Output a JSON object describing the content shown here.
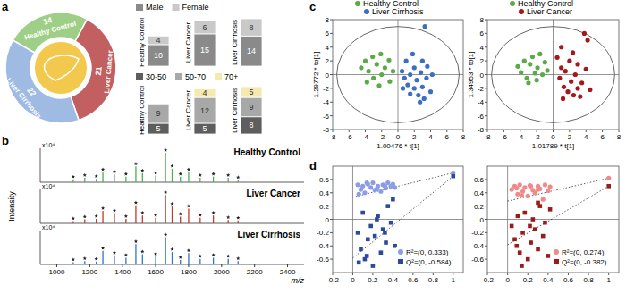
{
  "chart_data": [
    {
      "type": "pie",
      "title": "a",
      "categories": [
        "Healthy Control",
        "Liver Cancer",
        "Liver Cirrhosis"
      ],
      "values": [
        14,
        21,
        22
      ],
      "colors": [
        "#9fcf86",
        "#c25f60",
        "#9fbbe3"
      ],
      "data_labels": true
    },
    {
      "type": "bar",
      "stacked": true,
      "data_labels": true,
      "tick_labels": "x",
      "legend": "top",
      "categories": [
        "Healthy Control",
        "Liver Cancer",
        "Liver Cirrhosis"
      ],
      "ylim": [
        0,
        22
      ],
      "series": [
        {
          "name": "Male",
          "color": "#8a8a8a",
          "values": [
            10,
            15,
            14
          ]
        },
        {
          "name": "Female",
          "color": "#c9c9c9",
          "values": [
            4,
            6,
            8
          ]
        }
      ]
    },
    {
      "type": "bar",
      "stacked": true,
      "data_labels": true,
      "tick_labels": "x",
      "legend": "top",
      "categories": [
        "Healthy Control",
        "Liver Cancer",
        "Liver Cirrhosis"
      ],
      "ylim": [
        0,
        22
      ],
      "series": [
        {
          "name": "30-50",
          "color": "#5e5e5e",
          "values": [
            5,
            5,
            8
          ]
        },
        {
          "name": "50-70",
          "color": "#a8a8a8",
          "values": [
            9,
            12,
            9
          ]
        },
        {
          "name": "70+",
          "color": "#f5e9b0",
          "values": [
            null,
            4,
            5
          ]
        }
      ]
    },
    {
      "type": "stem",
      "title": "b",
      "x_label": "m/z",
      "y_label": "Intensity",
      "annotation": "x10⁴",
      "marker": "star",
      "tick_labels": "x",
      "xlim": [
        900,
        2500
      ],
      "xticks": [
        1000,
        1200,
        1400,
        1600,
        1800,
        2000,
        2200,
        2400
      ],
      "ylim": [
        0,
        3
      ],
      "x": [
        1100,
        1170,
        1240,
        1280,
        1350,
        1420,
        1480,
        1520,
        1600,
        1660,
        1700,
        1750,
        1800,
        1870,
        1950,
        2040,
        2100
      ],
      "series": [
        {
          "name": "Healthy Control",
          "color": "#4caf50",
          "values": [
            0.25,
            0.4,
            0.3,
            0.9,
            0.7,
            0.5,
            1.4,
            0.8,
            0.6,
            2.6,
            1.2,
            0.5,
            0.9,
            0.4,
            0.5,
            0.4,
            0.2
          ]
        },
        {
          "name": "Liver Cancer",
          "color": "#c0392b",
          "values": [
            0.2,
            0.35,
            0.4,
            1.1,
            0.9,
            0.4,
            1.6,
            0.7,
            0.5,
            2.5,
            1.5,
            0.6,
            1.3,
            0.5,
            0.7,
            0.3,
            0.25
          ]
        },
        {
          "name": "Liver Cirrhosis",
          "color": "#2e75c9",
          "values": [
            0.2,
            0.3,
            0.25,
            1.2,
            0.8,
            0.6,
            1.8,
            0.9,
            0.7,
            2.4,
            1.1,
            0.4,
            1.0,
            0.5,
            0.6,
            0.5,
            0.3
          ]
        }
      ]
    },
    {
      "type": "scatter",
      "title": "c",
      "x_label": "1.00476 * t[1]",
      "y_label": "1.29772 * to[1]",
      "legend": "top",
      "xlim": [
        -8,
        8
      ],
      "ylim": [
        -8,
        8
      ],
      "xticks": [
        -8,
        -6,
        -4,
        -2,
        0,
        2,
        4,
        6,
        8
      ],
      "yticks": [
        -8,
        -6,
        -4,
        -2,
        0,
        2,
        4,
        6,
        8
      ],
      "ellipse": {
        "rx": 7.5,
        "ry": 7
      },
      "series": [
        {
          "name": "Healthy Control",
          "color": "#5aaa46",
          "marker": "circle",
          "x": [
            -4.5,
            -4,
            -3.6,
            -3.1,
            -3,
            -2.6,
            -2.1,
            -2,
            -1.6,
            -1.1,
            -1,
            -0.6,
            -3.8,
            -2.3
          ],
          "values": [
            1,
            2,
            0.5,
            2.6,
            -0.5,
            1.5,
            3,
            0,
            1,
            2.1,
            -1,
            0.5,
            -1.1,
            -1.6
          ]
        },
        {
          "name": "Liver Cirrhosis",
          "color": "#3a6fc4",
          "marker": "circle",
          "x": [
            0.5,
            0.8,
            1,
            1.2,
            1.5,
            1.8,
            2,
            2,
            2.3,
            2.5,
            2.8,
            3,
            3,
            3.2,
            3.5,
            3.6,
            4,
            1.5,
            0.6,
            2.7,
            3.3,
            4.2
          ],
          "values": [
            0.5,
            -0.5,
            2,
            -1.5,
            0,
            3,
            -2,
            1,
            -0.8,
            -3,
            0.3,
            -1.8,
            2,
            -3.5,
            -0.5,
            1.2,
            -2.5,
            -2.8,
            -2,
            -4,
            7,
            0
          ]
        }
      ]
    },
    {
      "type": "scatter",
      "x_label": "1.01789 * t[1]",
      "y_label": "1.34953 * to[1]",
      "legend": "top",
      "xlim": [
        -8,
        8
      ],
      "ylim": [
        -8,
        8
      ],
      "xticks": [
        -8,
        -6,
        -4,
        -2,
        0,
        2,
        4,
        6,
        8
      ],
      "yticks": [
        -8,
        -6,
        -4,
        -2,
        0,
        2,
        4,
        6,
        8
      ],
      "ellipse": {
        "rx": 7.5,
        "ry": 7
      },
      "series": [
        {
          "name": "Healthy Control",
          "color": "#5aaa46",
          "marker": "circle",
          "x": [
            -4.3,
            -3.9,
            -3.5,
            -3.2,
            -2.8,
            -2.5,
            -2.2,
            -1.9,
            -1.6,
            -1.3,
            -1,
            -0.7,
            -3,
            -2
          ],
          "values": [
            1.2,
            0.3,
            2,
            -0.5,
            1.5,
            2.6,
            0.2,
            1,
            3,
            0,
            1.8,
            0.6,
            -1.2,
            -0.8
          ]
        },
        {
          "name": "Liver Cancer",
          "color": "#a5171c",
          "marker": "circle",
          "x": [
            0.5,
            0.8,
            1,
            1,
            1.3,
            1.5,
            1.8,
            2,
            2.2,
            2.5,
            2.7,
            3,
            3,
            3.3,
            3.5,
            3.8,
            4,
            4.2,
            4.5,
            1.2,
            2.4
          ],
          "values": [
            2.5,
            -0.5,
            4,
            1,
            -1.8,
            0.5,
            -2.5,
            2,
            -1,
            -3,
            0,
            -2,
            1.5,
            -3.2,
            -1.2,
            6,
            0.8,
            5,
            -2.2,
            -3.5,
            3.2
          ]
        }
      ]
    },
    {
      "type": "scatter",
      "title": "d",
      "legend": "bottom right",
      "xlim": [
        -0.2,
        1.1
      ],
      "ylim": [
        -0.8,
        0.8
      ],
      "xticks": [
        -0.2,
        0,
        0.2,
        0.4,
        0.6,
        0.8,
        1
      ],
      "yticks": [
        -0.6,
        -0.4,
        -0.2,
        0,
        0.2,
        0.4,
        0.6
      ],
      "series": [
        {
          "name": "R²=(0, 0.333)",
          "color": "#8c9de6",
          "marker": "circle",
          "line_style": "dotted",
          "intercept": 0.333,
          "x": [
            0.05,
            0.08,
            0.1,
            0.12,
            0.15,
            0.18,
            0.2,
            0.22,
            0.25,
            0.28,
            0.3,
            0.33,
            0.35,
            0.38,
            0.4,
            0.42,
            0.06,
            0.14,
            0.24,
            0.32,
            1
          ],
          "values": [
            0.52,
            0.45,
            0.5,
            0.4,
            0.53,
            0.48,
            0.55,
            0.44,
            0.5,
            0.42,
            0.52,
            0.47,
            0.55,
            0.5,
            0.53,
            0.48,
            0.38,
            0.55,
            0.46,
            0.5,
            0.7
          ]
        },
        {
          "name": "Q²=(0, -0.584)",
          "color": "#2b4a9a",
          "marker": "square",
          "line_style": "dotted",
          "intercept": -0.584,
          "x": [
            0.05,
            0.08,
            0.1,
            0.12,
            0.15,
            0.18,
            0.2,
            0.22,
            0.25,
            0.28,
            0.3,
            0.33,
            0.35,
            0.38,
            0.4,
            0.42,
            0.06,
            0.14,
            0.24,
            0.32,
            1
          ],
          "values": [
            -0.2,
            -0.45,
            0.1,
            -0.6,
            -0.3,
            -0.1,
            -0.7,
            -0.25,
            0.05,
            -0.5,
            -0.15,
            -0.35,
            0.2,
            -0.05,
            0.3,
            -0.4,
            -0.65,
            -0.55,
            0,
            -0.2,
            0.65
          ]
        }
      ]
    },
    {
      "type": "scatter",
      "legend": "bottom right",
      "xlim": [
        -0.2,
        1.1
      ],
      "ylim": [
        -0.8,
        0.8
      ],
      "xticks": [
        -0.2,
        0,
        0.2,
        0.4,
        0.6,
        0.8,
        1
      ],
      "yticks": [
        -0.6,
        -0.4,
        -0.2,
        0,
        0.2,
        0.4,
        0.6
      ],
      "series": [
        {
          "name": "R²=(0, 0.274)",
          "color": "#f08a8a",
          "marker": "circle",
          "line_style": "dotted",
          "intercept": 0.274,
          "x": [
            0.04,
            0.07,
            0.1,
            0.12,
            0.15,
            0.17,
            0.2,
            0.23,
            0.25,
            0.27,
            0.3,
            0.32,
            0.35,
            0.37,
            0.4,
            0.42,
            0.09,
            0.14,
            0.22,
            0.3,
            1
          ],
          "values": [
            0.45,
            0.5,
            0.38,
            0.52,
            0.42,
            0.48,
            0.35,
            0.5,
            0.44,
            0.4,
            0.5,
            0.46,
            0.3,
            0.52,
            0.43,
            0.49,
            0.47,
            0.36,
            0.51,
            0.45,
            0.62
          ]
        },
        {
          "name": "Q²=(0, -0.382)",
          "color": "#9b1b1b",
          "marker": "square",
          "line_style": "dotted",
          "intercept": -0.382,
          "x": [
            0.04,
            0.07,
            0.1,
            0.12,
            0.15,
            0.17,
            0.2,
            0.23,
            0.25,
            0.27,
            0.3,
            0.32,
            0.35,
            0.37,
            0.4,
            0.42,
            0.09,
            0.14,
            0.22,
            0.3,
            1
          ],
          "values": [
            -0.1,
            -0.3,
            0.05,
            -0.5,
            -0.2,
            0.1,
            -0.6,
            -0.35,
            0,
            -0.15,
            -0.45,
            0.2,
            -0.25,
            -0.05,
            -0.55,
            0.15,
            -0.4,
            -0.7,
            -0.1,
            0.25,
            0.5
          ]
        }
      ]
    }
  ]
}
